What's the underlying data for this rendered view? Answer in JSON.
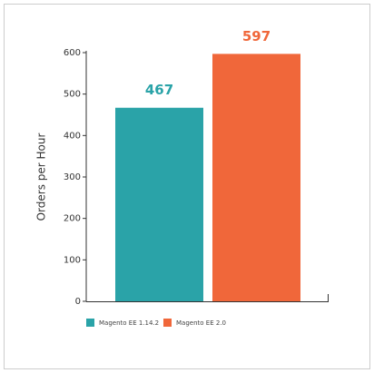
{
  "chart_data": {
    "type": "bar",
    "ylabel": "Orders per Hour",
    "series": [
      {
        "name": "Magento EE 1.14.2",
        "color": "#2aa3a8",
        "values": [
          467
        ]
      },
      {
        "name": "Magento EE 2.0",
        "color": "#f0673a",
        "values": [
          597
        ]
      }
    ],
    "ylim": [
      0,
      600
    ],
    "yticks": [
      0,
      100,
      200,
      300,
      400,
      500,
      600
    ],
    "grid": false,
    "legend": "bottom"
  }
}
